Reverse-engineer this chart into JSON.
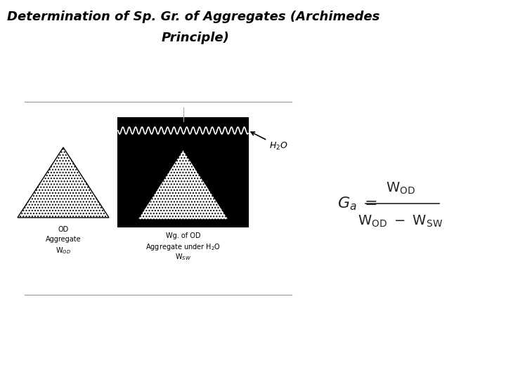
{
  "title_line1": "Determination of Sp. Gr. of Aggregates (Archimedes",
  "title_line2": "Principle)",
  "title_fontsize": 13,
  "bg_color": "#ffffff",
  "label1_line1": "OD",
  "label1_line2": "Aggregate",
  "label1_line3": "W$_{OD}$",
  "label2_line1": "Wg. of OD",
  "label2_line2": "Aggregate under H$_2$O",
  "label2_line3": "W$_{SW}$"
}
